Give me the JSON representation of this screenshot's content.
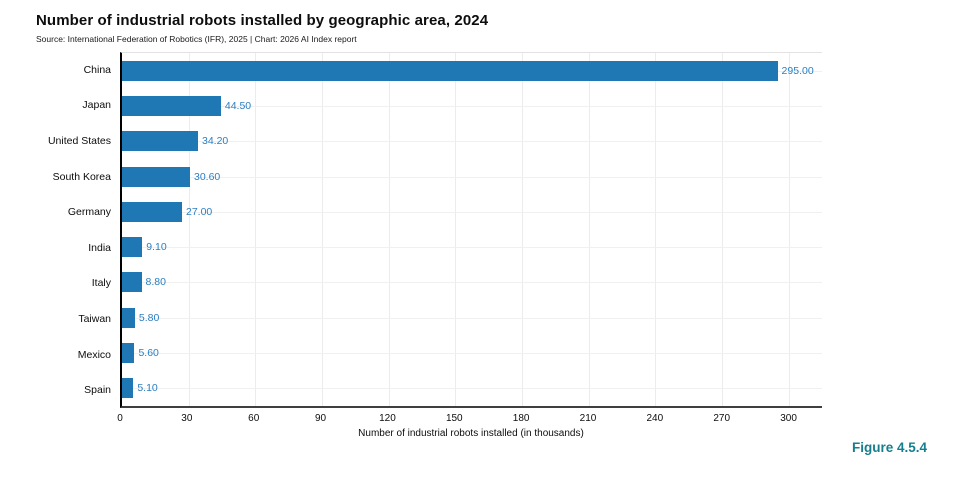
{
  "header": {
    "title": "Number of industrial robots installed by geographic area, 2024",
    "source_line": "Source: International Federation of Robotics (IFR), 2025 | Chart: 2026 AI Index report"
  },
  "figure_label": "Figure 4.5.4",
  "colors": {
    "bar": "#1f77b4",
    "value_label": "#2b7fc2",
    "figure_label": "#157f8d",
    "gridline_v": "#ececec",
    "gridline_h": "#f0f0f0"
  },
  "chart_data": {
    "type": "bar",
    "orientation": "horizontal",
    "title": "Number of industrial robots installed by geographic area, 2024",
    "subtitle": "Source: International Federation of Robotics (IFR), 2025 | Chart: 2026 AI Index report",
    "categories": [
      "China",
      "Japan",
      "United States",
      "South Korea",
      "Germany",
      "India",
      "Italy",
      "Taiwan",
      "Mexico",
      "Spain"
    ],
    "values": [
      295.0,
      44.5,
      34.2,
      30.6,
      27.0,
      9.1,
      8.8,
      5.8,
      5.6,
      5.1
    ],
    "value_labels": [
      "295.00",
      "44.50",
      "34.20",
      "30.60",
      "27.00",
      "9.10",
      "8.80",
      "5.80",
      "5.60",
      "5.10"
    ],
    "xlabel": "Number of industrial robots installed (in thousands)",
    "ylabel": "",
    "xticks": [
      0,
      30,
      60,
      90,
      120,
      150,
      180,
      210,
      240,
      270,
      300
    ],
    "xlim": [
      0,
      315
    ],
    "grid": true,
    "legend": "none"
  }
}
